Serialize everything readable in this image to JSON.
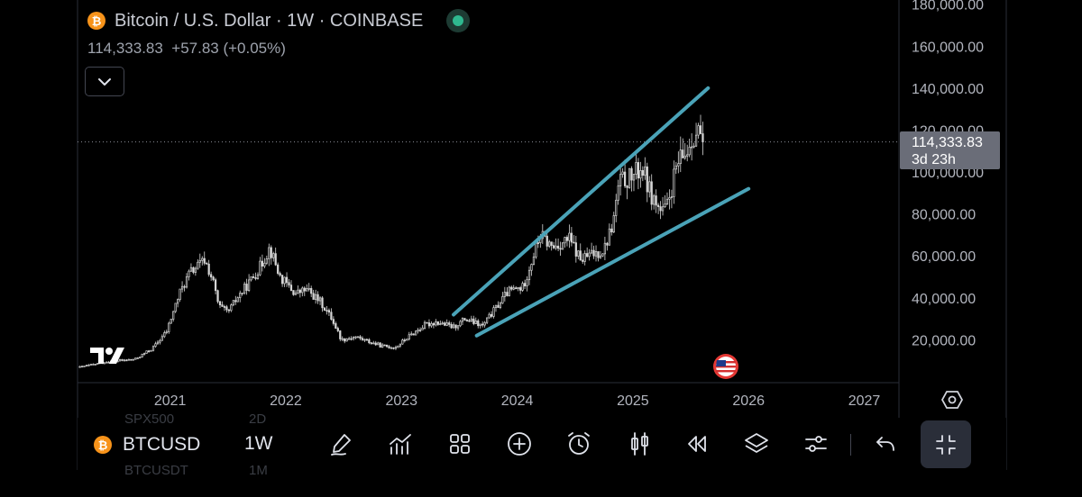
{
  "header": {
    "coin_glyph": "₿",
    "title": "Bitcoin / U.S. Dollar · 1W · COINBASE",
    "quote": "114,333.83  +57.83 (+0.05%)"
  },
  "price_label": {
    "price": "114,333.83",
    "countdown": "3d 23h"
  },
  "chart_data": {
    "type": "candlestick",
    "symbol": "BTCUSD",
    "interval": "1W",
    "exchange": "COINBASE",
    "x_tick_labels": [
      "2021",
      "2022",
      "2023",
      "2024",
      "2025",
      "2026",
      "2027"
    ],
    "y_tick_labels": [
      "180,000.00",
      "160,000.00",
      "140,000.00",
      "120,000.00",
      "100,000.00",
      "80,000.00",
      "60,000.00",
      "40,000.00",
      "20,000.00"
    ],
    "y_ticks": [
      180000,
      160000,
      140000,
      120000,
      100000,
      80000,
      60000,
      40000,
      20000
    ],
    "xlim": [
      2020.2,
      2027.3
    ],
    "ylim": [
      0,
      182000
    ],
    "last_price": 114333.83,
    "price_path": [
      [
        2020.22,
        7000
      ],
      [
        2020.45,
        9500
      ],
      [
        2020.7,
        10800
      ],
      [
        2020.85,
        16000
      ],
      [
        2020.97,
        24000
      ],
      [
        2021.08,
        42000
      ],
      [
        2021.17,
        52000
      ],
      [
        2021.3,
        58000
      ],
      [
        2021.37,
        48000
      ],
      [
        2021.42,
        36000
      ],
      [
        2021.5,
        33000
      ],
      [
        2021.58,
        40000
      ],
      [
        2021.68,
        47000
      ],
      [
        2021.78,
        55000
      ],
      [
        2021.86,
        64000
      ],
      [
        2021.95,
        50000
      ],
      [
        2022.08,
        42000
      ],
      [
        2022.18,
        44000
      ],
      [
        2022.3,
        38000
      ],
      [
        2022.4,
        30000
      ],
      [
        2022.48,
        20000
      ],
      [
        2022.6,
        21500
      ],
      [
        2022.7,
        19500
      ],
      [
        2022.83,
        17000
      ],
      [
        2022.95,
        16500
      ],
      [
        2023.05,
        21000
      ],
      [
        2023.2,
        27000
      ],
      [
        2023.3,
        28500
      ],
      [
        2023.45,
        26000
      ],
      [
        2023.55,
        30000
      ],
      [
        2023.7,
        26500
      ],
      [
        2023.8,
        34000
      ],
      [
        2023.92,
        43000
      ],
      [
        2024.05,
        45000
      ],
      [
        2024.15,
        62000
      ],
      [
        2024.2,
        70000
      ],
      [
        2024.3,
        64000
      ],
      [
        2024.45,
        68000
      ],
      [
        2024.55,
        58000
      ],
      [
        2024.62,
        60000
      ],
      [
        2024.75,
        63000
      ],
      [
        2024.83,
        76000
      ],
      [
        2024.88,
        95000
      ],
      [
        2024.97,
        97000
      ],
      [
        2025.08,
        102000
      ],
      [
        2025.15,
        90000
      ],
      [
        2025.25,
        80000
      ],
      [
        2025.3,
        84000
      ],
      [
        2025.38,
        103000
      ],
      [
        2025.45,
        108000
      ],
      [
        2025.52,
        118000
      ],
      [
        2025.58,
        119000
      ],
      [
        2025.62,
        114333.83
      ]
    ],
    "trendlines": [
      {
        "x1": 2023.45,
        "y1": 32000,
        "x2": 2025.65,
        "y2": 140000,
        "color": "#4aa3b8"
      },
      {
        "x1": 2023.65,
        "y1": 22000,
        "x2": 2026.0,
        "y2": 92000,
        "color": "#4aa3b8"
      }
    ],
    "last_price_line": true,
    "colors": {
      "candles": "#d6d6d6",
      "trendline": "#4aa3b8",
      "axis_text": "#b2b5be",
      "grid": "#2a2e39"
    }
  },
  "toolbar": {
    "ghost_symbol_top": "SPX500",
    "ghost_interval_top": "2D",
    "ghost_symbol_bottom": "BTCUSDT",
    "ghost_interval_bottom": "1M",
    "symbol": "BTCUSD",
    "interval": "1W",
    "tools": [
      "pen-icon",
      "indicators-icon",
      "layouts-icon",
      "add-icon",
      "alert-icon",
      "candles-icon",
      "replay-icon",
      "layers-icon",
      "settings-sliders-icon",
      "undo-icon",
      "fullscreen-exit-icon"
    ]
  }
}
